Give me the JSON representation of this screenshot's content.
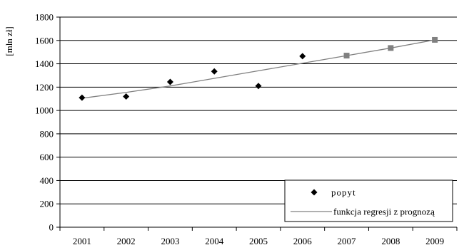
{
  "chart_data": {
    "type": "line",
    "ylabel": "[mln zł]",
    "ylim": [
      0,
      1800
    ],
    "y_ticks": [
      0,
      200,
      400,
      600,
      800,
      1000,
      1200,
      1400,
      1600,
      1800
    ],
    "categories": [
      "2001",
      "2002",
      "2003",
      "2004",
      "2005",
      "2006",
      "2007",
      "2008",
      "2009"
    ],
    "grid": true,
    "legend_position": "bottom-right",
    "series": [
      {
        "name": "popyt",
        "kind": "scatter",
        "marker": "diamond",
        "color": "#000000",
        "x": [
          "2001",
          "2002",
          "2003",
          "2004",
          "2005",
          "2006"
        ],
        "values": [
          1110,
          1120,
          1245,
          1335,
          1210,
          1465
        ]
      },
      {
        "name": "funkcja regresji z prognozą",
        "kind": "line",
        "color": "#808080",
        "x": [
          "2001",
          "2002",
          "2003",
          "2004",
          "2005",
          "2006",
          "2007",
          "2008",
          "2009"
        ],
        "values": [
          1105,
          1155,
          1210,
          1275,
          1340,
          1405,
          1470,
          1535,
          1605
        ],
        "forecast_markers": {
          "marker": "square",
          "color": "#808080",
          "x": [
            "2007",
            "2008",
            "2009"
          ],
          "values": [
            1470,
            1535,
            1605
          ]
        }
      }
    ]
  }
}
